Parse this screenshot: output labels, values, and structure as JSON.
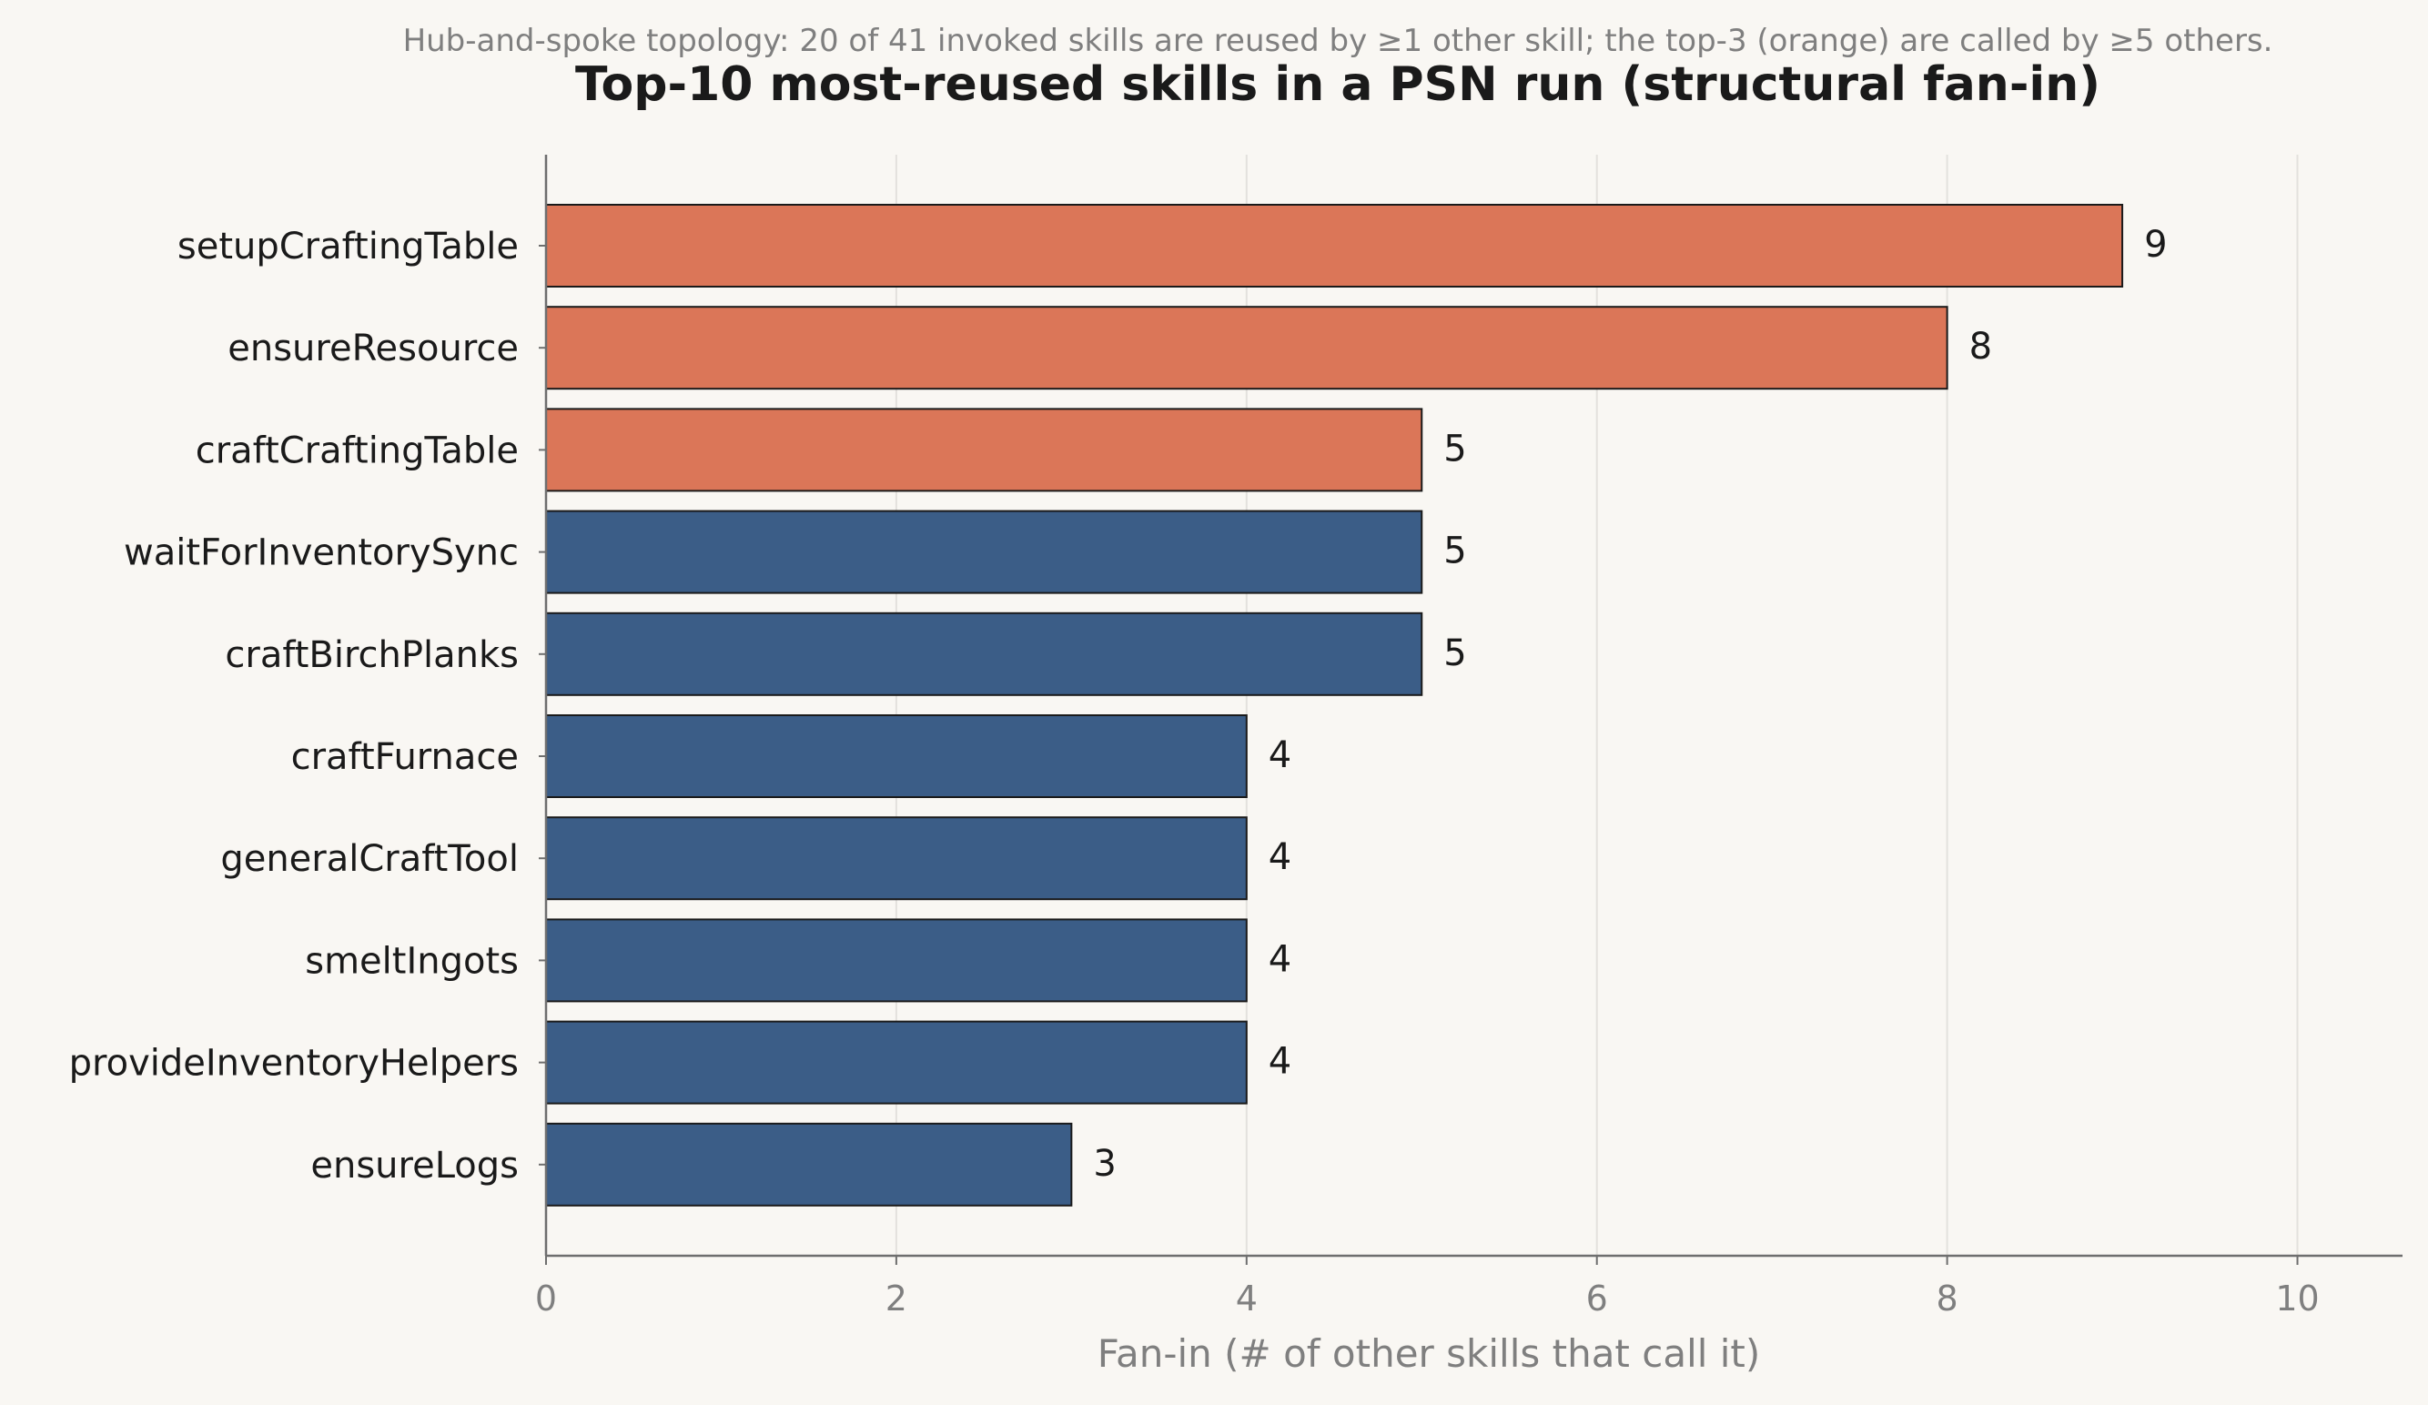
{
  "chart_data": {
    "type": "bar",
    "orientation": "horizontal",
    "title": "Top-10 most-reused skills in a PSN run  (structural fan-in)",
    "subtitle": "Hub-and-spoke topology: 20 of 41 invoked skills are reused by ≥1 other skill; the top-3 (orange) are called by ≥5 others.",
    "xlabel": "Fan-in  (# of other skills that call it)",
    "ylabel": "",
    "xlim": [
      0,
      10.6
    ],
    "xticks": [
      0,
      2,
      4,
      6,
      8,
      10
    ],
    "grid": "vertical",
    "categories": [
      "setupCraftingTable",
      "ensureResource",
      "craftCraftingTable",
      "waitForInventorySync",
      "craftBirchPlanks",
      "craftFurnace",
      "generalCraftTool",
      "smeltIngots",
      "provideInventoryHelpers",
      "ensureLogs"
    ],
    "values": [
      9,
      8,
      5,
      5,
      5,
      4,
      4,
      4,
      4,
      3
    ],
    "highlight_top_n": 3,
    "colors": {
      "highlight": "#db7658",
      "default": "#3b5d87",
      "edge": "#1a1a1a",
      "grid": "#e3e1dd",
      "axis": "#6e6e6e",
      "background": "#f9f7f3"
    }
  }
}
